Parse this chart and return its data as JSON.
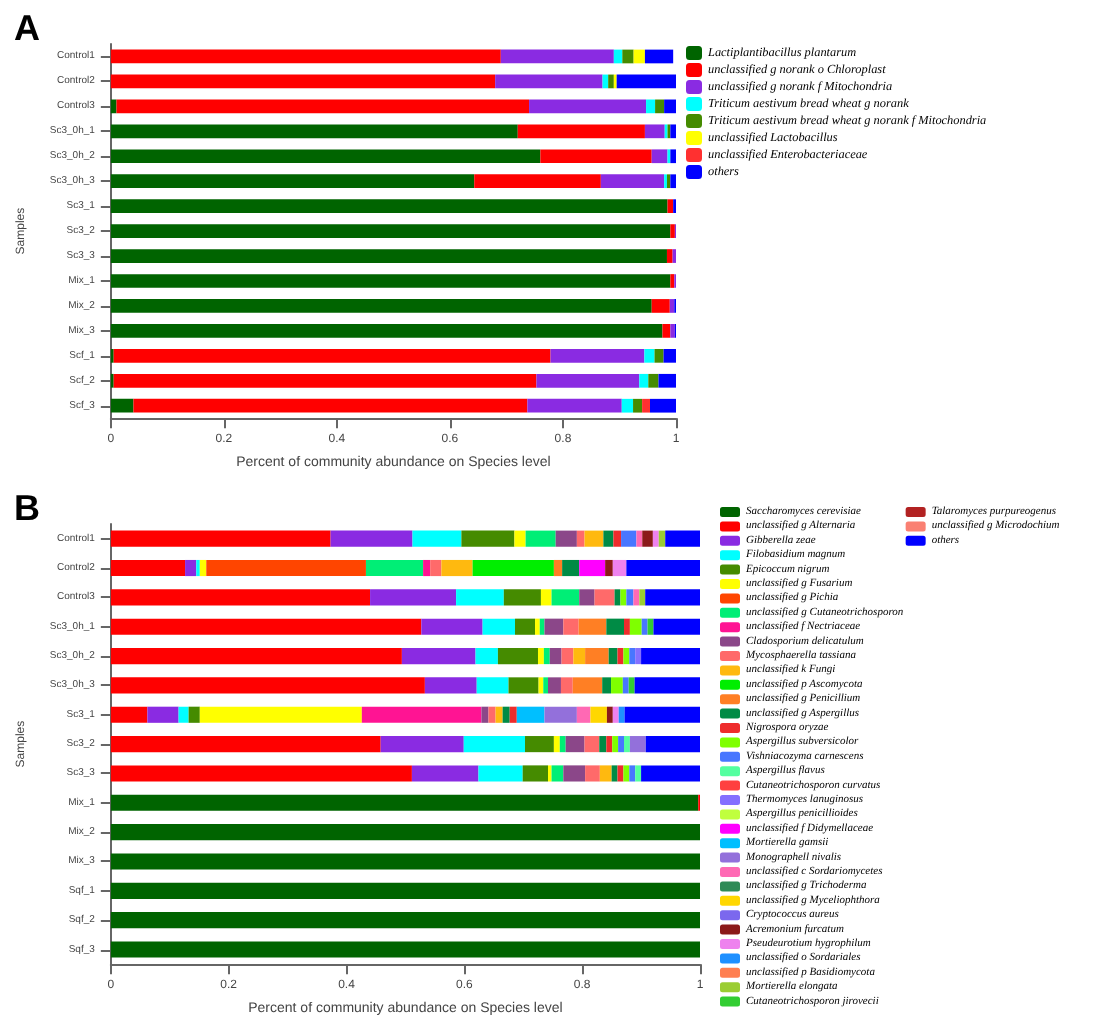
{
  "chart_data": [
    {
      "type": "bar",
      "title": "A",
      "orientation": "horizontal",
      "stacked": true,
      "legend": "right",
      "xlabel": "Percent of community abundance on Species level",
      "ylabel": "Samples",
      "xlim": [
        0,
        1
      ],
      "xticks": [
        0,
        0.2,
        0.4,
        0.6,
        0.8,
        1
      ],
      "categories": [
        "Control1",
        "Control2",
        "Control3",
        "Sc3_0h_1",
        "Sc3_0h_2",
        "Sc3_0h_3",
        "Sc3_1",
        "Sc3_2",
        "Sc3_3",
        "Mix_1",
        "Mix_2",
        "Mix_3",
        "Scf_1",
        "Scf_2",
        "Scf_3"
      ],
      "series": [
        {
          "name": "Lactiplantibacillus plantarum",
          "color": "#006400",
          "values": [
            0,
            0,
            0.01,
            0.72,
            0.76,
            0.643,
            0.985,
            0.99,
            0.984,
            0.99,
            0.957,
            0.976,
            0.005,
            0.005,
            0.04
          ]
        },
        {
          "name": "unclassified g norank o Chloroplast",
          "color": "#ff0000",
          "values": [
            0.69,
            0.68,
            0.73,
            0.225,
            0.197,
            0.224,
            0.01,
            0.008,
            0.01,
            0.007,
            0.032,
            0.014,
            0.773,
            0.748,
            0.697
          ]
        },
        {
          "name": "unclassified g norank f Mitochondria",
          "color": "#8a2be2",
          "values": [
            0.2,
            0.19,
            0.207,
            0.035,
            0.028,
            0.112,
            0,
            0.002,
            0.006,
            0.003,
            0.008,
            0.008,
            0.166,
            0.182,
            0.167
          ]
        },
        {
          "name": "Triticum aestivum bread wheat g norank",
          "color": "#00ffff",
          "values": [
            0.015,
            0.01,
            0.016,
            0.005,
            0.005,
            0.005,
            0,
            0,
            0,
            0,
            0,
            0,
            0.018,
            0.016,
            0.02
          ]
        },
        {
          "name": "Triticum aestivum bread wheat g norank f Mitochondria",
          "color": "#458b00",
          "values": [
            0.02,
            0.01,
            0.016,
            0.005,
            0,
            0.006,
            0,
            0,
            0,
            0,
            0,
            0,
            0.016,
            0.018,
            0.016
          ]
        },
        {
          "name": "unclassified Lactobacillus",
          "color": "#ffff00",
          "values": [
            0.02,
            0.005,
            0,
            0,
            0,
            0,
            0,
            0,
            0,
            0,
            0,
            0,
            0,
            0,
            0
          ]
        },
        {
          "name": "unclassified Enterobacteriaceae",
          "color": "#ff3030",
          "values": [
            0,
            0,
            0,
            0,
            0,
            0,
            0,
            0,
            0,
            0,
            0,
            0,
            0,
            0,
            0.014
          ]
        },
        {
          "name": "others",
          "color": "#0000ff",
          "values": [
            0.05,
            0.105,
            0.021,
            0.01,
            0.01,
            0.01,
            0.005,
            0,
            0,
            0,
            0.003,
            0.002,
            0.022,
            0.031,
            0.046
          ]
        }
      ]
    },
    {
      "type": "bar",
      "title": "B",
      "orientation": "horizontal",
      "stacked": true,
      "legend": "right",
      "xlabel": "Percent of community abundance on Species level",
      "ylabel": "Samples",
      "xlim": [
        0,
        1
      ],
      "xticks": [
        0,
        0.2,
        0.4,
        0.6,
        0.8,
        1
      ],
      "categories": [
        "Control1",
        "Control2",
        "Control3",
        "Sc3_0h_1",
        "Sc3_0h_2",
        "Sc3_0h_3",
        "Sc3_1",
        "Sc3_2",
        "Sc3_3",
        "Mix_1",
        "Mix_2",
        "Mix_3",
        "Sqf_1",
        "Sqf_2",
        "Sqf_3"
      ],
      "series": [
        {
          "name": "Saccharomyces cerevisiae",
          "color": "#006400",
          "values": [
            0,
            0,
            0,
            0,
            0,
            0,
            0,
            0,
            0,
            0.997,
            1,
            1,
            1,
            1,
            1
          ]
        },
        {
          "name": "unclassified g Alternaria",
          "color": "#ff0000",
          "values": [
            0.373,
            0.126,
            0.44,
            0.527,
            0.494,
            0.533,
            0.062,
            0.458,
            0.511,
            0.003,
            0,
            0,
            0,
            0,
            0
          ]
        },
        {
          "name": "Gibberella zeae",
          "color": "#8a2be2",
          "values": [
            0.139,
            0.019,
            0.146,
            0.104,
            0.125,
            0.088,
            0.053,
            0.141,
            0.113,
            0,
            0,
            0,
            0,
            0,
            0
          ]
        },
        {
          "name": "Filobasidium magnum",
          "color": "#00ffff",
          "values": [
            0.083,
            0.006,
            0.081,
            0.055,
            0.038,
            0.054,
            0.017,
            0.104,
            0.075,
            0,
            0,
            0,
            0,
            0,
            0
          ]
        },
        {
          "name": "Epicoccum nigrum",
          "color": "#458b00",
          "values": [
            0.09,
            0,
            0.063,
            0.034,
            0.068,
            0.051,
            0.019,
            0.049,
            0.043,
            0,
            0,
            0,
            0,
            0,
            0
          ]
        },
        {
          "name": "unclassified g Fusarium",
          "color": "#ffff00",
          "values": [
            0.019,
            0.011,
            0.018,
            0.008,
            0.01,
            0.008,
            0.275,
            0.01,
            0.006,
            0,
            0,
            0,
            0,
            0,
            0
          ]
        },
        {
          "name": "unclassified g Pichia",
          "color": "#ff4500",
          "values": [
            0,
            0.271,
            0,
            0,
            0,
            0,
            0,
            0,
            0,
            0,
            0,
            0,
            0,
            0,
            0
          ]
        },
        {
          "name": "unclassified g Cutaneotrichosporon",
          "color": "#00ee76",
          "values": [
            0.051,
            0.097,
            0.047,
            0.008,
            0.01,
            0.008,
            0,
            0.01,
            0.02,
            0,
            0,
            0,
            0,
            0,
            0
          ]
        },
        {
          "name": "unclassified f Nectriaceae",
          "color": "#ff1493",
          "values": [
            0,
            0.012,
            0,
            0,
            0,
            0,
            0.203,
            0,
            0,
            0,
            0,
            0,
            0,
            0,
            0
          ]
        },
        {
          "name": "Cladosporium delicatulum",
          "color": "#8b4789",
          "values": [
            0.036,
            0,
            0.026,
            0.032,
            0.02,
            0.022,
            0.012,
            0.032,
            0.037,
            0,
            0,
            0,
            0,
            0,
            0
          ]
        },
        {
          "name": "Mycosphaerella tassiana",
          "color": "#ff6a6a",
          "values": [
            0.013,
            0.019,
            0.034,
            0.026,
            0.02,
            0.02,
            0.012,
            0.025,
            0.025,
            0,
            0,
            0,
            0,
            0,
            0
          ]
        },
        {
          "name": "unclassified k Fungi",
          "color": "#ffb90f",
          "values": [
            0.032,
            0.053,
            0,
            0,
            0.02,
            0,
            0.012,
            0,
            0.02,
            0,
            0,
            0,
            0,
            0,
            0
          ]
        },
        {
          "name": "unclassified p Ascomycota",
          "color": "#00ee00",
          "values": [
            0,
            0.138,
            0,
            0,
            0,
            0,
            0,
            0,
            0,
            0,
            0,
            0,
            0,
            0,
            0
          ]
        },
        {
          "name": "unclassified g Penicillium",
          "color": "#ff7f24",
          "values": [
            0,
            0.014,
            0,
            0.047,
            0.04,
            0.05,
            0,
            0,
            0,
            0,
            0,
            0,
            0,
            0,
            0
          ]
        },
        {
          "name": "unclassified g Aspergillus",
          "color": "#008b45",
          "values": [
            0.017,
            0.029,
            0.01,
            0.03,
            0.015,
            0.015,
            0.012,
            0.012,
            0.01,
            0,
            0,
            0,
            0,
            0,
            0
          ]
        },
        {
          "name": "Nigrospora oryzae",
          "color": "#ee2c2c",
          "values": [
            0.013,
            0,
            0,
            0.01,
            0.01,
            0,
            0.012,
            0.01,
            0.01,
            0,
            0,
            0,
            0,
            0,
            0
          ]
        },
        {
          "name": "Aspergillus subversicolor",
          "color": "#7fff00",
          "values": [
            0,
            0,
            0.01,
            0.02,
            0.01,
            0.02,
            0,
            0.01,
            0.01,
            0,
            0,
            0,
            0,
            0,
            0
          ]
        },
        {
          "name": "Vishniacozyma carnescens",
          "color": "#4876ff",
          "values": [
            0.026,
            0,
            0.012,
            0.01,
            0.01,
            0.01,
            0,
            0.01,
            0.01,
            0,
            0,
            0,
            0,
            0,
            0
          ]
        },
        {
          "name": "Aspergillus flavus",
          "color": "#54ff9f",
          "values": [
            0,
            0,
            0,
            0,
            0,
            0,
            0,
            0.01,
            0.01,
            0,
            0,
            0,
            0,
            0,
            0
          ]
        },
        {
          "name": "Cutaneotrichosporon curvatus",
          "color": "#ff4040",
          "values": [
            0,
            0,
            0,
            0,
            0,
            0,
            0,
            0,
            0,
            0,
            0,
            0,
            0,
            0,
            0
          ]
        },
        {
          "name": "Thermomyces lanuginosus",
          "color": "#8470ff",
          "values": [
            0,
            0,
            0,
            0,
            0.01,
            0,
            0,
            0,
            0,
            0,
            0,
            0,
            0,
            0,
            0
          ]
        },
        {
          "name": "Aspergillus penicillioides",
          "color": "#c0ff3e",
          "values": [
            0,
            0,
            0,
            0,
            0,
            0,
            0,
            0,
            0,
            0,
            0,
            0,
            0,
            0,
            0
          ]
        },
        {
          "name": "unclassified f Didymellaceae",
          "color": "#ff00ff",
          "values": [
            0,
            0.044,
            0,
            0,
            0,
            0,
            0,
            0,
            0,
            0,
            0,
            0,
            0,
            0,
            0
          ]
        },
        {
          "name": "Mortierella gamsii",
          "color": "#00bfff",
          "values": [
            0,
            0,
            0,
            0,
            0,
            0,
            0.047,
            0,
            0,
            0,
            0,
            0,
            0,
            0,
            0
          ]
        },
        {
          "name": "Monographell nivalis",
          "color": "#9370db",
          "values": [
            0,
            0,
            0,
            0,
            0,
            0,
            0.055,
            0.027,
            0,
            0,
            0,
            0,
            0,
            0,
            0
          ]
        },
        {
          "name": "unclassified c Sordariomycetes",
          "color": "#ff69b4",
          "values": [
            0.01,
            0,
            0.01,
            0,
            0,
            0,
            0.023,
            0,
            0,
            0,
            0,
            0,
            0,
            0,
            0
          ]
        },
        {
          "name": "unclassified g Trichoderma",
          "color": "#2e8b57",
          "values": [
            0,
            0,
            0,
            0,
            0,
            0,
            0,
            0,
            0,
            0,
            0,
            0,
            0,
            0,
            0
          ]
        },
        {
          "name": "unclassified g Myceliophthora",
          "color": "#ffd700",
          "values": [
            0,
            0,
            0,
            0,
            0,
            0,
            0.028,
            0,
            0,
            0,
            0,
            0,
            0,
            0,
            0
          ]
        },
        {
          "name": "Cryptococcus aureus",
          "color": "#7b68ee",
          "values": [
            0,
            0,
            0,
            0,
            0,
            0,
            0,
            0,
            0,
            0,
            0,
            0,
            0,
            0,
            0
          ]
        },
        {
          "name": "Acremonium furcatum",
          "color": "#8b1a1a",
          "values": [
            0.018,
            0.013,
            0,
            0,
            0,
            0,
            0.01,
            0,
            0,
            0,
            0,
            0,
            0,
            0,
            0
          ]
        },
        {
          "name": "Pseudeurotium hygrophilum",
          "color": "#ee82ee",
          "values": [
            0.01,
            0.023,
            0,
            0,
            0,
            0,
            0.01,
            0,
            0,
            0,
            0,
            0,
            0,
            0,
            0
          ]
        },
        {
          "name": "unclassified o Sordariales",
          "color": "#1e90ff",
          "values": [
            0,
            0,
            0,
            0,
            0,
            0,
            0.01,
            0,
            0,
            0,
            0,
            0,
            0,
            0,
            0
          ]
        },
        {
          "name": "unclassified p Basidiomycota",
          "color": "#ff7f50",
          "values": [
            0,
            0,
            0,
            0,
            0,
            0,
            0,
            0,
            0,
            0,
            0,
            0,
            0,
            0,
            0
          ]
        },
        {
          "name": "Mortierella elongata",
          "color": "#9acd32",
          "values": [
            0.011,
            0,
            0.01,
            0,
            0,
            0,
            0,
            0,
            0,
            0,
            0,
            0,
            0,
            0,
            0
          ]
        },
        {
          "name": "Cutaneotrichosporon jirovecii",
          "color": "#32cd32",
          "values": [
            0,
            0,
            0,
            0.01,
            0,
            0.01,
            0,
            0,
            0,
            0,
            0,
            0,
            0,
            0,
            0
          ]
        },
        {
          "name": "Talaromyces purpureogenus",
          "color": "#b22222",
          "values": [
            0,
            0,
            0,
            0,
            0,
            0,
            0,
            0,
            0,
            0,
            0,
            0,
            0,
            0,
            0
          ]
        },
        {
          "name": "unclassified g Microdochium",
          "color": "#fa8072",
          "values": [
            0,
            0,
            0,
            0,
            0,
            0,
            0,
            0,
            0,
            0,
            0,
            0,
            0,
            0,
            0
          ]
        },
        {
          "name": "others",
          "color": "#0000ff",
          "values": [
            0.059,
            0.125,
            0.093,
            0.079,
            0.1,
            0.111,
            0.128,
            0.092,
            0.1,
            0,
            0,
            0,
            0,
            0,
            0
          ]
        }
      ]
    }
  ]
}
